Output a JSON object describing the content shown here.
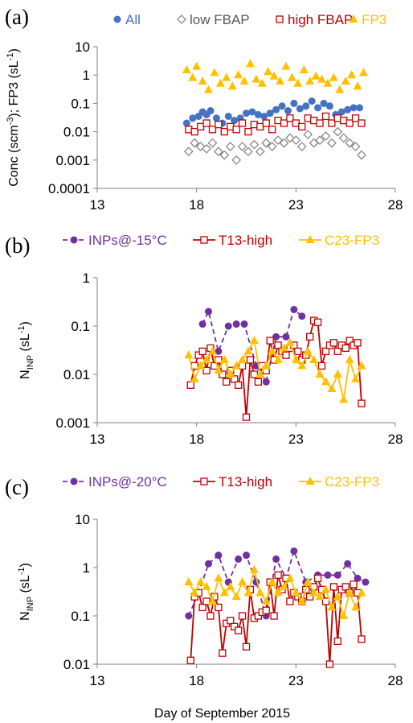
{
  "chart_data": [
    {
      "type": "scatter",
      "panel_label": "(a)",
      "ylabel_main": "Conc (scm",
      "ylabel_sup1": "-3",
      "ylabel_mid": "); FP3 (sL",
      "ylabel_sup2": "-1",
      "ylabel_end": ")",
      "xlabel": "",
      "y_scale": "log",
      "ylim": [
        0.0001,
        10
      ],
      "xlim": [
        13,
        28
      ],
      "x_ticks": [
        13,
        18,
        23,
        28
      ],
      "y_ticks": [
        {
          "v": 0.0001,
          "label": "0.0001"
        },
        {
          "v": 0.001,
          "label": "0.001"
        },
        {
          "v": 0.01,
          "label": "0.01"
        },
        {
          "v": 0.1,
          "label": "0.1"
        },
        {
          "v": 1,
          "label": "1"
        },
        {
          "v": 10,
          "label": "10"
        }
      ],
      "legend_position": "top",
      "series": [
        {
          "name": "All",
          "marker": "circle",
          "color": "#4472c4",
          "line": false,
          "label_color": "#4472c4",
          "x": [
            17.5,
            17.8,
            18.1,
            18.3,
            18.5,
            18.7,
            19.0,
            19.3,
            19.6,
            19.9,
            20.2,
            20.5,
            20.8,
            21.1,
            21.4,
            21.7,
            22.0,
            22.3,
            22.6,
            22.9,
            23.2,
            23.5,
            23.8,
            24.1,
            24.4,
            24.7,
            25.0,
            25.3,
            25.6,
            25.9,
            26.2
          ],
          "y": [
            0.02,
            0.03,
            0.035,
            0.05,
            0.04,
            0.055,
            0.03,
            0.02,
            0.035,
            0.025,
            0.03,
            0.045,
            0.05,
            0.04,
            0.035,
            0.045,
            0.06,
            0.08,
            0.055,
            0.1,
            0.065,
            0.08,
            0.12,
            0.07,
            0.1,
            0.08,
            0.04,
            0.05,
            0.06,
            0.07,
            0.07
          ]
        },
        {
          "name": "low FBAP",
          "marker": "diamond",
          "color": "#808080",
          "line": false,
          "label_color": "#595959",
          "x": [
            17.6,
            17.9,
            18.2,
            18.5,
            18.8,
            19.1,
            19.4,
            19.7,
            20.0,
            20.3,
            20.6,
            20.9,
            21.2,
            21.5,
            21.8,
            22.1,
            22.4,
            22.7,
            23.0,
            23.3,
            23.6,
            23.9,
            24.2,
            24.5,
            24.8,
            25.1,
            25.4,
            25.7,
            26.0,
            26.3
          ],
          "y": [
            0.002,
            0.004,
            0.003,
            0.0025,
            0.004,
            0.002,
            0.0015,
            0.003,
            0.001,
            0.003,
            0.002,
            0.0035,
            0.002,
            0.004,
            0.003,
            0.005,
            0.004,
            0.006,
            0.005,
            0.003,
            0.008,
            0.004,
            0.005,
            0.007,
            0.004,
            0.01,
            0.006,
            0.004,
            0.003,
            0.0015
          ]
        },
        {
          "name": "high FBAP",
          "marker": "square-open",
          "color": "#c00000",
          "line": false,
          "label_color": "#c00000",
          "x": [
            17.6,
            17.9,
            18.2,
            18.5,
            18.8,
            19.1,
            19.4,
            19.7,
            20.0,
            20.3,
            20.6,
            20.9,
            21.2,
            21.5,
            21.8,
            22.1,
            22.4,
            22.7,
            23.0,
            23.3,
            23.6,
            23.9,
            24.2,
            24.5,
            24.8,
            25.1,
            25.4,
            25.7,
            26.0,
            26.3
          ],
          "y": [
            0.012,
            0.01,
            0.015,
            0.02,
            0.012,
            0.018,
            0.01,
            0.015,
            0.012,
            0.02,
            0.01,
            0.018,
            0.015,
            0.02,
            0.012,
            0.025,
            0.02,
            0.03,
            0.02,
            0.015,
            0.03,
            0.025,
            0.02,
            0.035,
            0.02,
            0.03,
            0.025,
            0.02,
            0.03,
            0.02
          ]
        },
        {
          "name": "FP3",
          "marker": "triangle",
          "color": "#ffc000",
          "line": false,
          "label_color": "#ffc000",
          "x": [
            17.5,
            17.8,
            18.0,
            18.3,
            18.6,
            18.9,
            19.2,
            19.5,
            19.8,
            20.1,
            20.4,
            20.7,
            21.0,
            21.3,
            21.6,
            21.9,
            22.2,
            22.5,
            22.8,
            23.1,
            23.4,
            23.7,
            24.0,
            24.3,
            24.6,
            24.9,
            25.2,
            25.5,
            25.8,
            26.1,
            26.4
          ],
          "y": [
            1.5,
            0.8,
            2.0,
            0.6,
            0.3,
            1.2,
            0.5,
            0.8,
            0.4,
            1.0,
            0.6,
            2.5,
            0.7,
            0.5,
            1.3,
            0.9,
            0.6,
            2.0,
            0.8,
            0.5,
            1.5,
            0.6,
            0.9,
            0.7,
            0.5,
            0.8,
            0.3,
            0.6,
            1.0,
            0.4,
            1.2
          ]
        }
      ]
    },
    {
      "type": "line",
      "panel_label": "(b)",
      "ylabel_main": "N",
      "ylabel_sub": "INP",
      "ylabel_unit": " (sL",
      "ylabel_sup": "-1",
      "ylabel_end": ")",
      "xlabel": "",
      "y_scale": "log",
      "ylim": [
        0.001,
        1
      ],
      "xlim": [
        13,
        28
      ],
      "x_ticks": [
        13,
        18,
        23,
        28
      ],
      "y_ticks": [
        {
          "v": 0.001,
          "label": "0.001"
        },
        {
          "v": 0.01,
          "label": "0.01"
        },
        {
          "v": 0.1,
          "label": "0.1"
        },
        {
          "v": 1,
          "label": "1"
        }
      ],
      "legend_position": "top",
      "series": [
        {
          "name": "INPs@-15°C",
          "marker": "circle",
          "color": "#7030a0",
          "line": true,
          "dash": "6,4",
          "label_color": "#7030a0",
          "x": [
            18.3,
            18.6,
            19.1,
            19.6,
            20.0,
            20.4,
            21.0,
            21.5,
            22.0,
            22.5,
            22.9,
            23.3
          ],
          "y": [
            0.11,
            0.2,
            0.03,
            0.1,
            0.11,
            0.11,
            0.015,
            0.007,
            0.06,
            0.06,
            0.22,
            0.16
          ]
        },
        {
          "name": "T13-high",
          "marker": "square-open",
          "color": "#c00000",
          "line": true,
          "dash": "",
          "label_color": "#c00000",
          "x": [
            17.7,
            17.9,
            18.1,
            18.3,
            18.5,
            18.7,
            18.9,
            19.1,
            19.3,
            19.5,
            19.7,
            19.9,
            20.1,
            20.3,
            20.5,
            20.7,
            20.9,
            21.1,
            21.3,
            21.5,
            21.7,
            21.9,
            22.1,
            22.3,
            22.5,
            22.7,
            22.9,
            23.1,
            23.3,
            23.5,
            23.7,
            23.9,
            24.1,
            24.3,
            24.5,
            24.7,
            24.9,
            25.1,
            25.3,
            25.5,
            25.7,
            25.9,
            26.1,
            26.3
          ],
          "y": [
            0.006,
            0.015,
            0.025,
            0.03,
            0.012,
            0.035,
            0.015,
            0.02,
            0.01,
            0.007,
            0.012,
            0.008,
            0.006,
            0.015,
            0.0013,
            0.02,
            0.01,
            0.007,
            0.015,
            0.012,
            0.05,
            0.02,
            0.04,
            0.03,
            0.025,
            0.035,
            0.04,
            0.03,
            0.02,
            0.025,
            0.06,
            0.13,
            0.12,
            0.015,
            0.03,
            0.04,
            0.045,
            0.03,
            0.04,
            0.035,
            0.05,
            0.04,
            0.045,
            0.0025
          ]
        },
        {
          "name": "C23-FP3",
          "marker": "triangle",
          "color": "#ffc000",
          "line": true,
          "dash": "",
          "label_color": "#ffc000",
          "x": [
            17.6,
            17.9,
            18.2,
            18.5,
            18.8,
            19.1,
            19.4,
            19.7,
            20.0,
            20.3,
            20.6,
            20.9,
            21.2,
            21.5,
            21.8,
            22.1,
            22.4,
            22.7,
            23.0,
            23.3,
            23.6,
            23.9,
            24.2,
            24.5,
            24.8,
            25.1,
            25.4,
            25.7,
            26.0,
            26.3
          ],
          "y": [
            0.025,
            0.008,
            0.015,
            0.02,
            0.03,
            0.012,
            0.02,
            0.01,
            0.015,
            0.02,
            0.03,
            0.05,
            0.01,
            0.015,
            0.03,
            0.02,
            0.035,
            0.045,
            0.02,
            0.015,
            0.03,
            0.02,
            0.01,
            0.007,
            0.005,
            0.01,
            0.003,
            0.02,
            0.008,
            0.015
          ]
        }
      ]
    },
    {
      "type": "line",
      "panel_label": "(c)",
      "ylabel_main": "N",
      "ylabel_sub": "INP",
      "ylabel_unit": " (sL",
      "ylabel_sup": "-1",
      "ylabel_end": ")",
      "xlabel": "Day of September 2015",
      "y_scale": "log",
      "ylim": [
        0.01,
        10
      ],
      "xlim": [
        13,
        28
      ],
      "x_ticks": [
        13,
        18,
        23,
        28
      ],
      "y_ticks": [
        {
          "v": 0.01,
          "label": "0.01"
        },
        {
          "v": 0.1,
          "label": "0.1"
        },
        {
          "v": 1,
          "label": "1"
        },
        {
          "v": 10,
          "label": "10"
        }
      ],
      "legend_position": "top",
      "series": [
        {
          "name": "INPs@-20°C",
          "marker": "circle",
          "color": "#7030a0",
          "line": true,
          "dash": "6,4",
          "label_color": "#7030a0",
          "x": [
            17.6,
            18.1,
            18.6,
            19.1,
            19.6,
            20.1,
            20.5,
            21.0,
            21.5,
            22.0,
            22.5,
            22.9,
            23.5,
            24.1,
            24.6,
            25.1,
            25.6,
            26.1,
            26.5
          ],
          "y": [
            0.1,
            0.3,
            1.2,
            1.8,
            0.5,
            1.5,
            1.8,
            0.5,
            0.1,
            1.5,
            0.6,
            2.2,
            0.5,
            0.7,
            0.7,
            0.7,
            1.2,
            0.6,
            0.5
          ]
        },
        {
          "name": "T13-high",
          "marker": "square-open",
          "color": "#c00000",
          "line": true,
          "dash": "",
          "label_color": "#c00000",
          "x": [
            17.7,
            17.9,
            18.1,
            18.3,
            18.5,
            18.7,
            18.9,
            19.1,
            19.3,
            19.5,
            19.7,
            19.9,
            20.1,
            20.3,
            20.5,
            20.7,
            20.9,
            21.1,
            21.3,
            21.5,
            21.7,
            21.9,
            22.1,
            22.3,
            22.5,
            22.7,
            22.9,
            23.1,
            23.3,
            23.5,
            23.7,
            23.9,
            24.1,
            24.3,
            24.5,
            24.7,
            24.9,
            25.1,
            25.3,
            25.5,
            25.7,
            25.9,
            26.1,
            26.3
          ],
          "y": [
            0.012,
            0.25,
            0.3,
            0.15,
            0.2,
            0.1,
            0.25,
            0.15,
            0.017,
            0.07,
            0.08,
            0.06,
            0.05,
            0.1,
            0.023,
            0.35,
            0.09,
            0.1,
            0.12,
            0.13,
            0.5,
            0.1,
            0.7,
            0.35,
            0.6,
            0.2,
            0.3,
            0.25,
            0.2,
            0.35,
            0.25,
            0.4,
            0.6,
            0.35,
            0.2,
            0.01,
            0.4,
            0.03,
            0.35,
            0.4,
            0.3,
            0.45,
            0.3,
            0.033
          ]
        },
        {
          "name": "C23-FP3",
          "marker": "triangle",
          "color": "#ffc000",
          "line": true,
          "dash": "",
          "label_color": "#ffc000",
          "x": [
            17.6,
            17.9,
            18.2,
            18.5,
            18.8,
            19.1,
            19.4,
            19.7,
            20.0,
            20.3,
            20.6,
            20.9,
            21.2,
            21.5,
            21.8,
            22.1,
            22.4,
            22.7,
            23.0,
            23.3,
            23.6,
            23.9,
            24.2,
            24.5,
            24.8,
            25.1,
            25.4,
            25.7,
            26.0,
            26.3
          ],
          "y": [
            0.5,
            0.3,
            0.5,
            0.4,
            0.2,
            0.6,
            0.3,
            0.4,
            0.25,
            0.5,
            0.3,
            0.9,
            0.3,
            0.2,
            0.5,
            0.3,
            0.4,
            0.6,
            0.3,
            0.2,
            0.5,
            0.3,
            0.25,
            0.35,
            0.15,
            0.25,
            0.1,
            0.3,
            0.15,
            0.3
          ]
        }
      ]
    }
  ]
}
